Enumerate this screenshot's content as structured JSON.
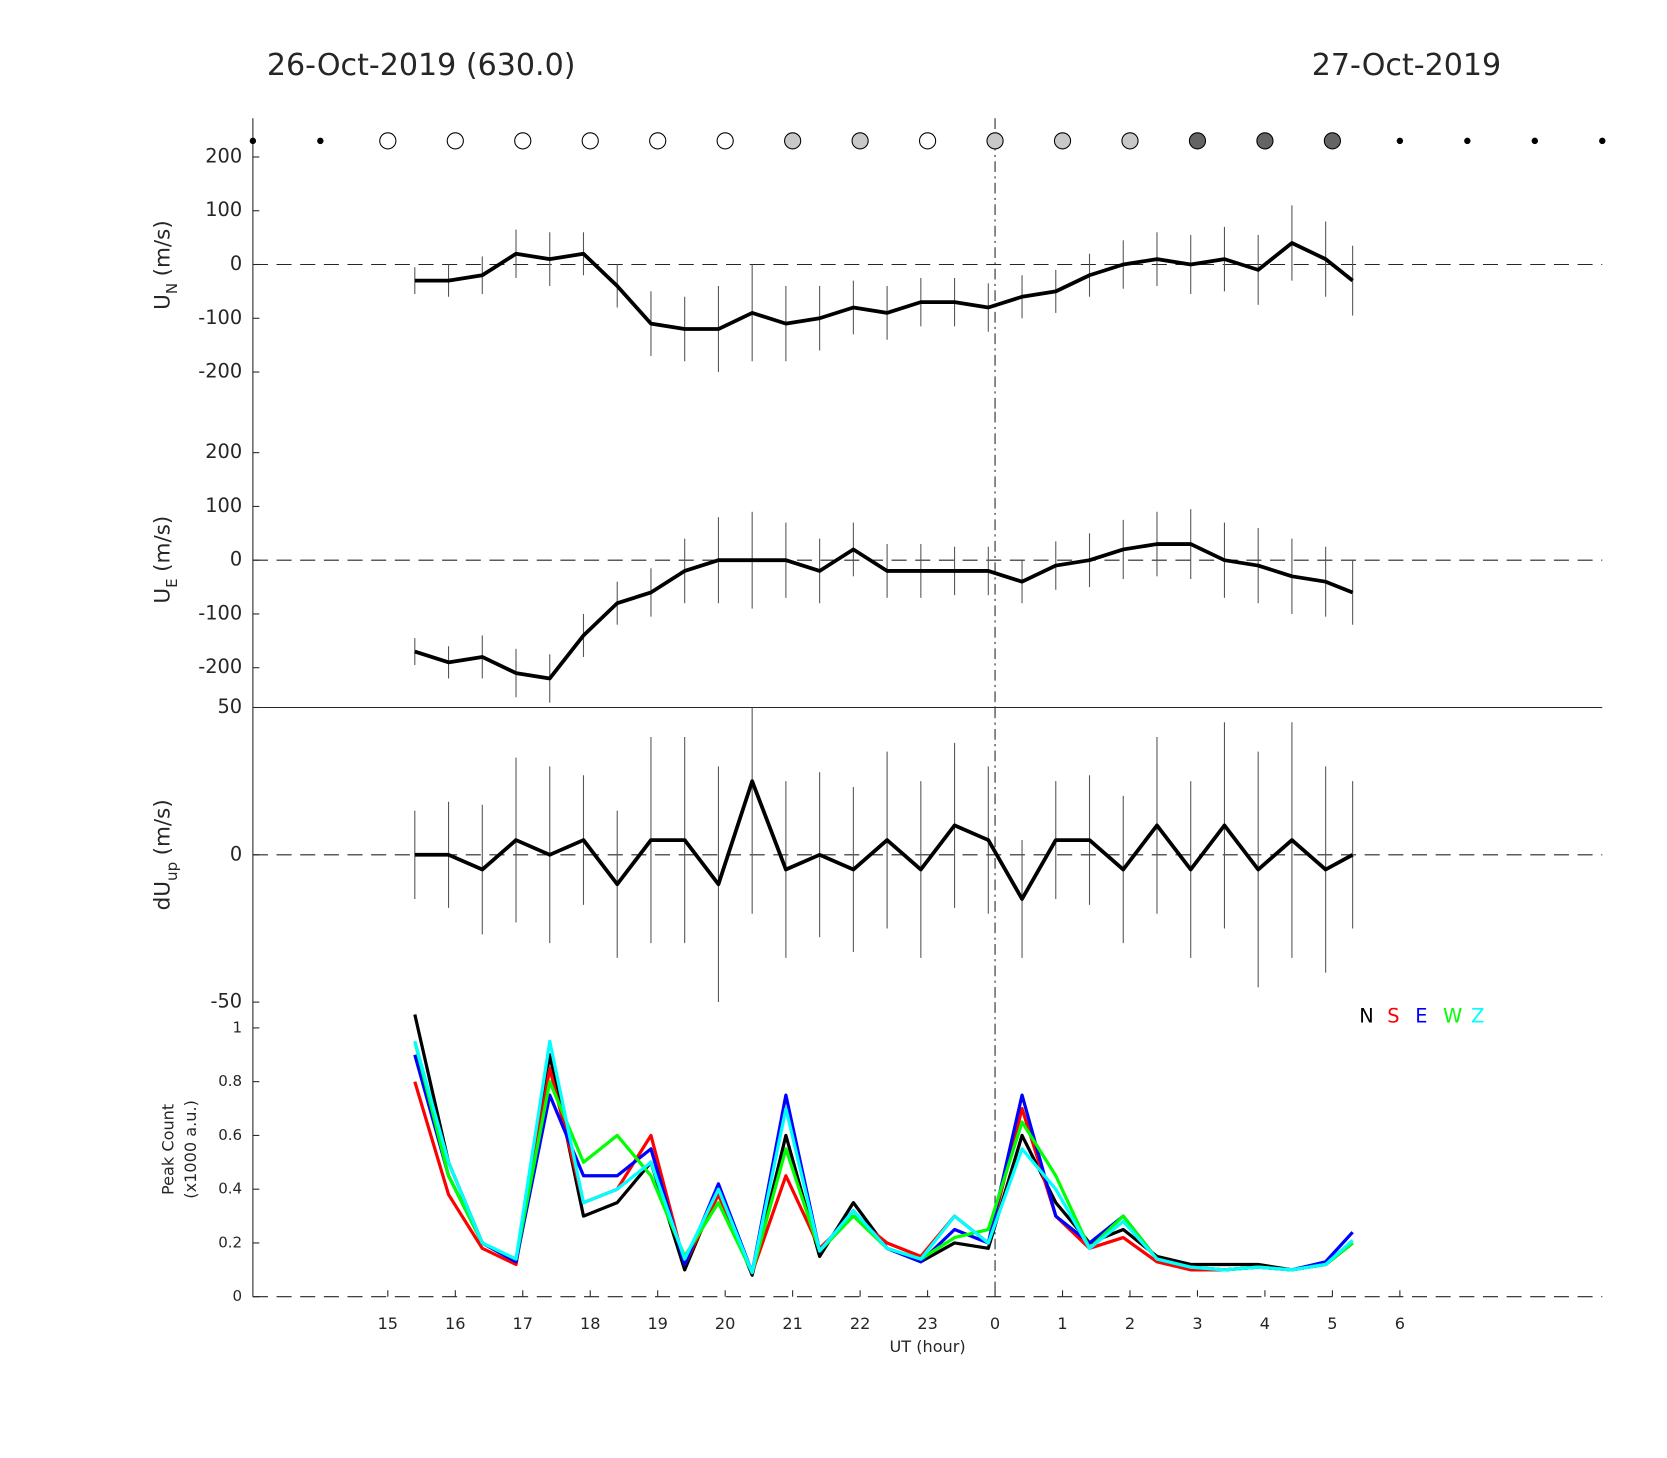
{
  "chart_data": [
    {
      "type": "errorbar-line",
      "title": "26-Oct-2019 (630.0)",
      "title_right": "27-Oct-2019",
      "ylabel": {
        "main": "U",
        "sub": "N",
        "unit": "(m/s)"
      },
      "xlim": [
        13,
        33
      ],
      "ylim": [
        -274,
        272
      ],
      "yticks": [
        -200,
        -100,
        0,
        100,
        200
      ],
      "zero_line": 0,
      "vline": 24,
      "markers": {
        "x": [
          13,
          14,
          15,
          16,
          17,
          18,
          19,
          20,
          21,
          22,
          23,
          24,
          25,
          26,
          27,
          28,
          29,
          30,
          31,
          32,
          33
        ],
        "fill": [
          "#000000",
          "#000000",
          "#ffffff",
          "#ffffff",
          "#ffffff",
          "#ffffff",
          "#ffffff",
          "#ffffff",
          "#c8c8c8",
          "#c8c8c8",
          "#ffffff",
          "#c8c8c8",
          "#c8c8c8",
          "#c8c8c8",
          "#646464",
          "#646464",
          "#646464",
          "#000000",
          "#000000",
          "#000000",
          "#000000"
        ]
      },
      "x": [
        15.4,
        15.9,
        16.4,
        16.9,
        17.4,
        17.9,
        18.4,
        18.9,
        19.4,
        19.9,
        20.4,
        20.9,
        21.4,
        21.9,
        22.4,
        22.9,
        23.4,
        23.9,
        24.4,
        24.9,
        25.4,
        25.9,
        26.4,
        26.9,
        27.4,
        27.9,
        28.4,
        28.9,
        29.3
      ],
      "series": [
        {
          "color": "#000000",
          "values": [
            -30,
            -30,
            -20,
            20,
            10,
            20,
            -40,
            -110,
            -120,
            -120,
            -90,
            -110,
            -100,
            -80,
            -90,
            -70,
            -70,
            -80,
            -60,
            -50,
            -20,
            0,
            10,
            0,
            10,
            -10,
            40,
            10,
            -30
          ],
          "errors": [
            25,
            30,
            35,
            45,
            50,
            40,
            40,
            60,
            60,
            80,
            90,
            70,
            60,
            50,
            50,
            45,
            45,
            45,
            40,
            40,
            40,
            45,
            50,
            55,
            60,
            65,
            70,
            70,
            65
          ]
        }
      ]
    },
    {
      "type": "errorbar-line",
      "ylabel": {
        "main": "U",
        "sub": "E",
        "unit": "(m/s)"
      },
      "xlim": [
        13,
        33
      ],
      "ylim": [
        -274,
        276
      ],
      "yticks": [
        -200,
        -100,
        0,
        100,
        200
      ],
      "zero_line": 0,
      "vline": 24,
      "x": [
        15.4,
        15.9,
        16.4,
        16.9,
        17.4,
        17.9,
        18.4,
        18.9,
        19.4,
        19.9,
        20.4,
        20.9,
        21.4,
        21.9,
        22.4,
        22.9,
        23.4,
        23.9,
        24.4,
        24.9,
        25.4,
        25.9,
        26.4,
        26.9,
        27.4,
        27.9,
        28.4,
        28.9,
        29.3
      ],
      "series": [
        {
          "color": "#000000",
          "values": [
            -170,
            -190,
            -180,
            -210,
            -220,
            -140,
            -80,
            -60,
            -20,
            0,
            0,
            0,
            -20,
            20,
            -20,
            -20,
            -20,
            -20,
            -40,
            -10,
            0,
            20,
            30,
            30,
            0,
            -10,
            -30,
            -40,
            -60
          ],
          "errors": [
            25,
            30,
            40,
            45,
            45,
            40,
            40,
            45,
            60,
            80,
            90,
            70,
            60,
            50,
            50,
            50,
            45,
            45,
            40,
            45,
            50,
            55,
            60,
            65,
            70,
            70,
            70,
            65,
            60
          ]
        }
      ]
    },
    {
      "type": "errorbar-line",
      "ylabel": {
        "main": "dU",
        "sub": "up",
        "unit": "(m/s)"
      },
      "xlim": [
        13,
        33
      ],
      "ylim": [
        -50,
        50
      ],
      "yticks": [
        -50,
        0,
        50
      ],
      "zero_line": 0,
      "vline": 24,
      "x": [
        15.4,
        15.9,
        16.4,
        16.9,
        17.4,
        17.9,
        18.4,
        18.9,
        19.4,
        19.9,
        20.4,
        20.9,
        21.4,
        21.9,
        22.4,
        22.9,
        23.4,
        23.9,
        24.4,
        24.9,
        25.4,
        25.9,
        26.4,
        26.9,
        27.4,
        27.9,
        28.4,
        28.9,
        29.3
      ],
      "series": [
        {
          "color": "#000000",
          "values": [
            0,
            0,
            -5,
            5,
            0,
            5,
            -10,
            5,
            5,
            -10,
            25,
            -5,
            0,
            -5,
            5,
            -5,
            10,
            5,
            -15,
            5,
            5,
            -5,
            10,
            -5,
            10,
            -5,
            5,
            -5,
            0
          ],
          "errors": [
            15,
            18,
            22,
            28,
            30,
            22,
            25,
            35,
            35,
            40,
            45,
            30,
            28,
            28,
            30,
            30,
            28,
            25,
            20,
            20,
            22,
            25,
            30,
            30,
            35,
            40,
            40,
            35,
            25
          ]
        }
      ]
    },
    {
      "type": "line",
      "ylabel": {
        "line1": "Peak Count",
        "line2": "(x1000 a.u.)"
      },
      "xlabel": "UT (hour)",
      "xlim": [
        13,
        33
      ],
      "ylim": [
        0,
        1.096
      ],
      "yticks": [
        0,
        0.2,
        0.4,
        0.6,
        0.8,
        1
      ],
      "vline": 24,
      "xticks": [
        15,
        16,
        17,
        18,
        19,
        20,
        21,
        22,
        23,
        {
          "value": 24,
          "label": "0"
        },
        {
          "value": 25,
          "label": "1"
        },
        {
          "value": 26,
          "label": "2"
        },
        {
          "value": 27,
          "label": "3"
        },
        {
          "value": 28,
          "label": "4"
        },
        {
          "value": 29,
          "label": "5"
        },
        {
          "value": 30,
          "label": "6"
        }
      ],
      "x": [
        15.4,
        15.9,
        16.4,
        16.9,
        17.4,
        17.9,
        18.4,
        18.9,
        19.4,
        19.9,
        20.4,
        20.9,
        21.4,
        21.9,
        22.4,
        22.9,
        23.4,
        23.9,
        24.4,
        24.9,
        25.4,
        25.9,
        26.4,
        26.9,
        27.4,
        27.9,
        28.4,
        28.9,
        29.3
      ],
      "series": [
        {
          "name": "N",
          "color": "#000000",
          "values": [
            1.05,
            0.5,
            0.2,
            0.13,
            0.9,
            0.3,
            0.35,
            0.5,
            0.1,
            0.4,
            0.08,
            0.6,
            0.15,
            0.35,
            0.18,
            0.13,
            0.2,
            0.18,
            0.6,
            0.35,
            0.2,
            0.25,
            0.15,
            0.12,
            0.12,
            0.12,
            0.1,
            0.12,
            0.2
          ]
        },
        {
          "name": "S",
          "color": "#ff0000",
          "values": [
            0.8,
            0.38,
            0.18,
            0.12,
            0.85,
            0.35,
            0.4,
            0.6,
            0.12,
            0.38,
            0.09,
            0.45,
            0.18,
            0.3,
            0.2,
            0.15,
            0.3,
            0.2,
            0.7,
            0.3,
            0.18,
            0.22,
            0.13,
            0.1,
            0.1,
            0.11,
            0.1,
            0.12,
            0.2
          ]
        },
        {
          "name": "E",
          "color": "#0000ff",
          "values": [
            0.9,
            0.45,
            0.2,
            0.13,
            0.75,
            0.45,
            0.45,
            0.55,
            0.12,
            0.42,
            0.09,
            0.75,
            0.17,
            0.32,
            0.18,
            0.13,
            0.25,
            0.2,
            0.75,
            0.3,
            0.2,
            0.3,
            0.14,
            0.11,
            0.1,
            0.11,
            0.1,
            0.13,
            0.24
          ]
        },
        {
          "name": "W",
          "color": "#00ff00",
          "values": [
            0.95,
            0.45,
            0.2,
            0.14,
            0.8,
            0.5,
            0.6,
            0.45,
            0.15,
            0.35,
            0.09,
            0.55,
            0.17,
            0.3,
            0.18,
            0.14,
            0.22,
            0.25,
            0.65,
            0.45,
            0.18,
            0.3,
            0.14,
            0.11,
            0.1,
            0.11,
            0.1,
            0.12,
            0.2
          ]
        },
        {
          "name": "Z",
          "color": "#00ffff",
          "values": [
            0.95,
            0.5,
            0.2,
            0.14,
            0.95,
            0.35,
            0.4,
            0.5,
            0.14,
            0.4,
            0.09,
            0.7,
            0.17,
            0.32,
            0.18,
            0.14,
            0.3,
            0.2,
            0.55,
            0.4,
            0.18,
            0.28,
            0.14,
            0.11,
            0.1,
            0.11,
            0.1,
            0.12,
            0.21
          ]
        }
      ]
    }
  ]
}
